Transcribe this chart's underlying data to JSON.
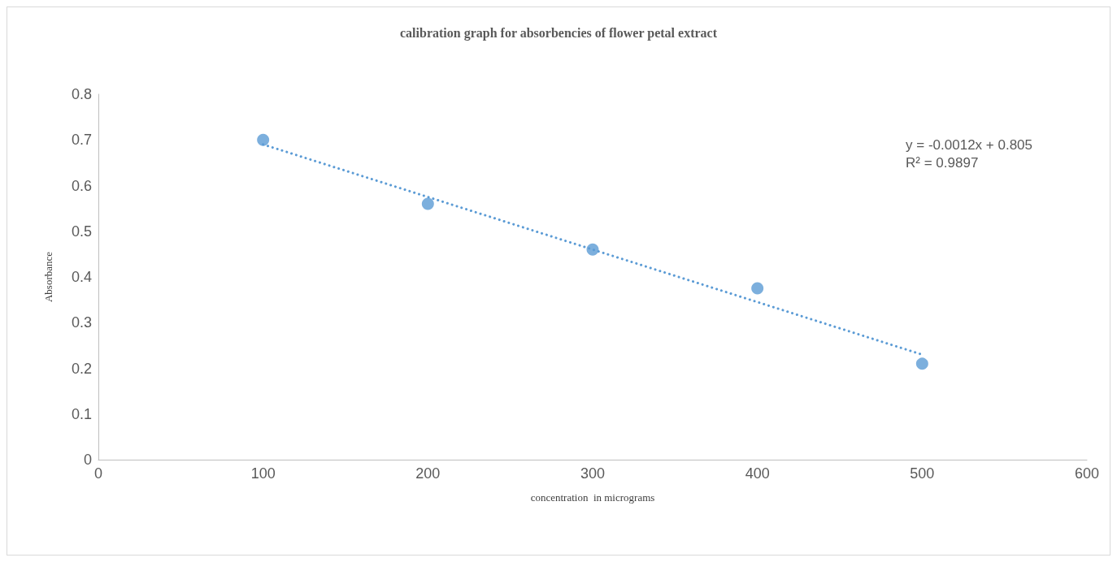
{
  "chart_data": {
    "type": "scatter",
    "title": "calibration graph for absorbencies of flower petal extract",
    "xlabel": "concentration  in micrograms",
    "ylabel": "Absorbance",
    "x": [
      100,
      200,
      300,
      400,
      500
    ],
    "series": [
      {
        "color": "#5b9bd5",
        "marker": "circle",
        "values": [
          0.7,
          0.56,
          0.46,
          0.375,
          0.21
        ]
      },
      {
        "type": "line",
        "color": "#5b9bd5",
        "x": [
          100,
          500
        ],
        "values": [
          0.69,
          0.23
        ],
        "line_style": "dotted",
        "marker": "none"
      }
    ],
    "xlim": [
      0,
      600
    ],
    "xticks": [
      0,
      100,
      200,
      300,
      400,
      500,
      600
    ],
    "ylim": [
      0,
      0.8
    ],
    "yticks": [
      0,
      0.1,
      0.2,
      0.3,
      0.4,
      0.5,
      0.6,
      0.7,
      0.8
    ],
    "grid": false,
    "annotations": [
      "y = -0.0012x + 0.805\nR² = 0.9897"
    ]
  }
}
